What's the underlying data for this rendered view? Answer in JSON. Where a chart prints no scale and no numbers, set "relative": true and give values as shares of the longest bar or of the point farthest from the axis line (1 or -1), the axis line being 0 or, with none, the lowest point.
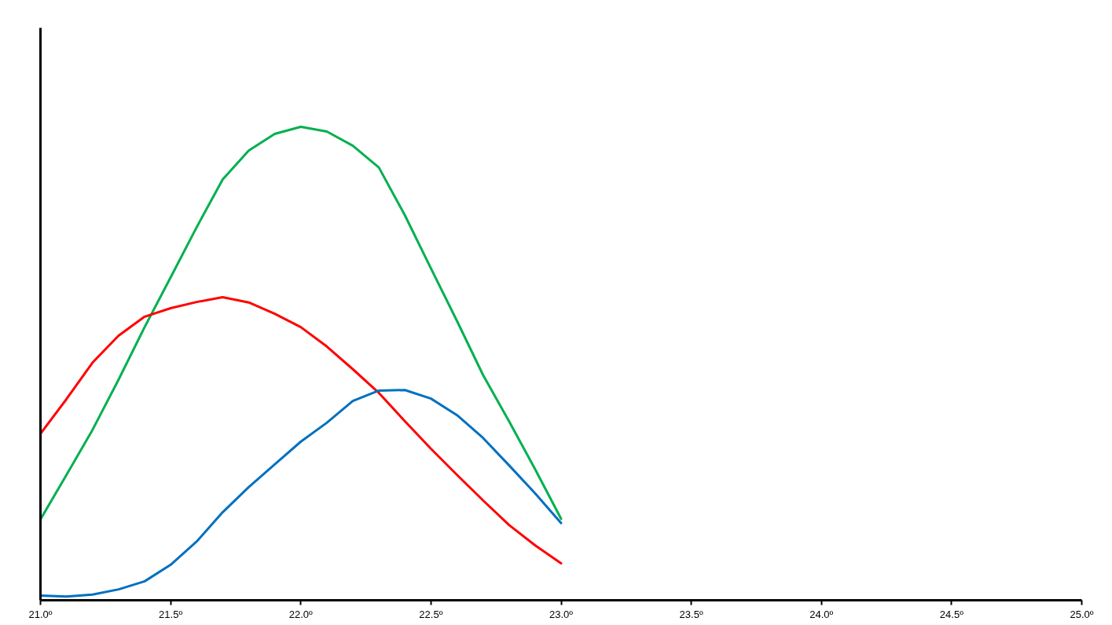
{
  "chart_data": {
    "type": "line",
    "relative": true,
    "tick_labels": "x",
    "grid": false,
    "marker": "none",
    "line_style": "solid",
    "xlim": [
      21.0,
      25.0
    ],
    "xticks": [
      {
        "value": 21.0,
        "label": "21.0º"
      },
      {
        "value": 21.5,
        "label": "21.5º"
      },
      {
        "value": 22.0,
        "label": "22.0º"
      },
      {
        "value": 22.5,
        "label": "22.5º"
      },
      {
        "value": 23.0,
        "label": "23.0º"
      },
      {
        "value": 23.5,
        "label": "23.5º"
      },
      {
        "value": 24.0,
        "label": "24.0º"
      },
      {
        "value": 24.5,
        "label": "24.5º"
      },
      {
        "value": 25.0,
        "label": "25.0º"
      }
    ],
    "x": [
      21.0,
      21.1,
      21.2,
      21.3,
      21.4,
      21.5,
      21.6,
      21.7,
      21.8,
      21.9,
      22.0,
      22.1,
      22.2,
      22.3,
      22.4,
      22.5,
      22.6,
      22.7,
      22.8,
      22.9,
      23.0
    ],
    "series": [
      {
        "color": "#00b050",
        "values": [
          0.171,
          0.265,
          0.36,
          0.466,
          0.577,
          0.682,
          0.788,
          0.889,
          0.95,
          0.985,
          1.0,
          0.99,
          0.96,
          0.914,
          0.813,
          0.701,
          0.59,
          0.476,
          0.378,
          0.277,
          0.172
        ]
      },
      {
        "color": "#ff0000",
        "values": [
          0.352,
          0.425,
          0.502,
          0.559,
          0.599,
          0.617,
          0.63,
          0.64,
          0.629,
          0.605,
          0.577,
          0.536,
          0.488,
          0.438,
          0.378,
          0.32,
          0.265,
          0.211,
          0.159,
          0.116,
          0.078
        ]
      },
      {
        "color": "#0070c0",
        "values": [
          0.01,
          0.008,
          0.012,
          0.023,
          0.04,
          0.075,
          0.124,
          0.186,
          0.239,
          0.287,
          0.335,
          0.375,
          0.421,
          0.443,
          0.444,
          0.426,
          0.391,
          0.343,
          0.285,
          0.226,
          0.163
        ]
      }
    ]
  }
}
